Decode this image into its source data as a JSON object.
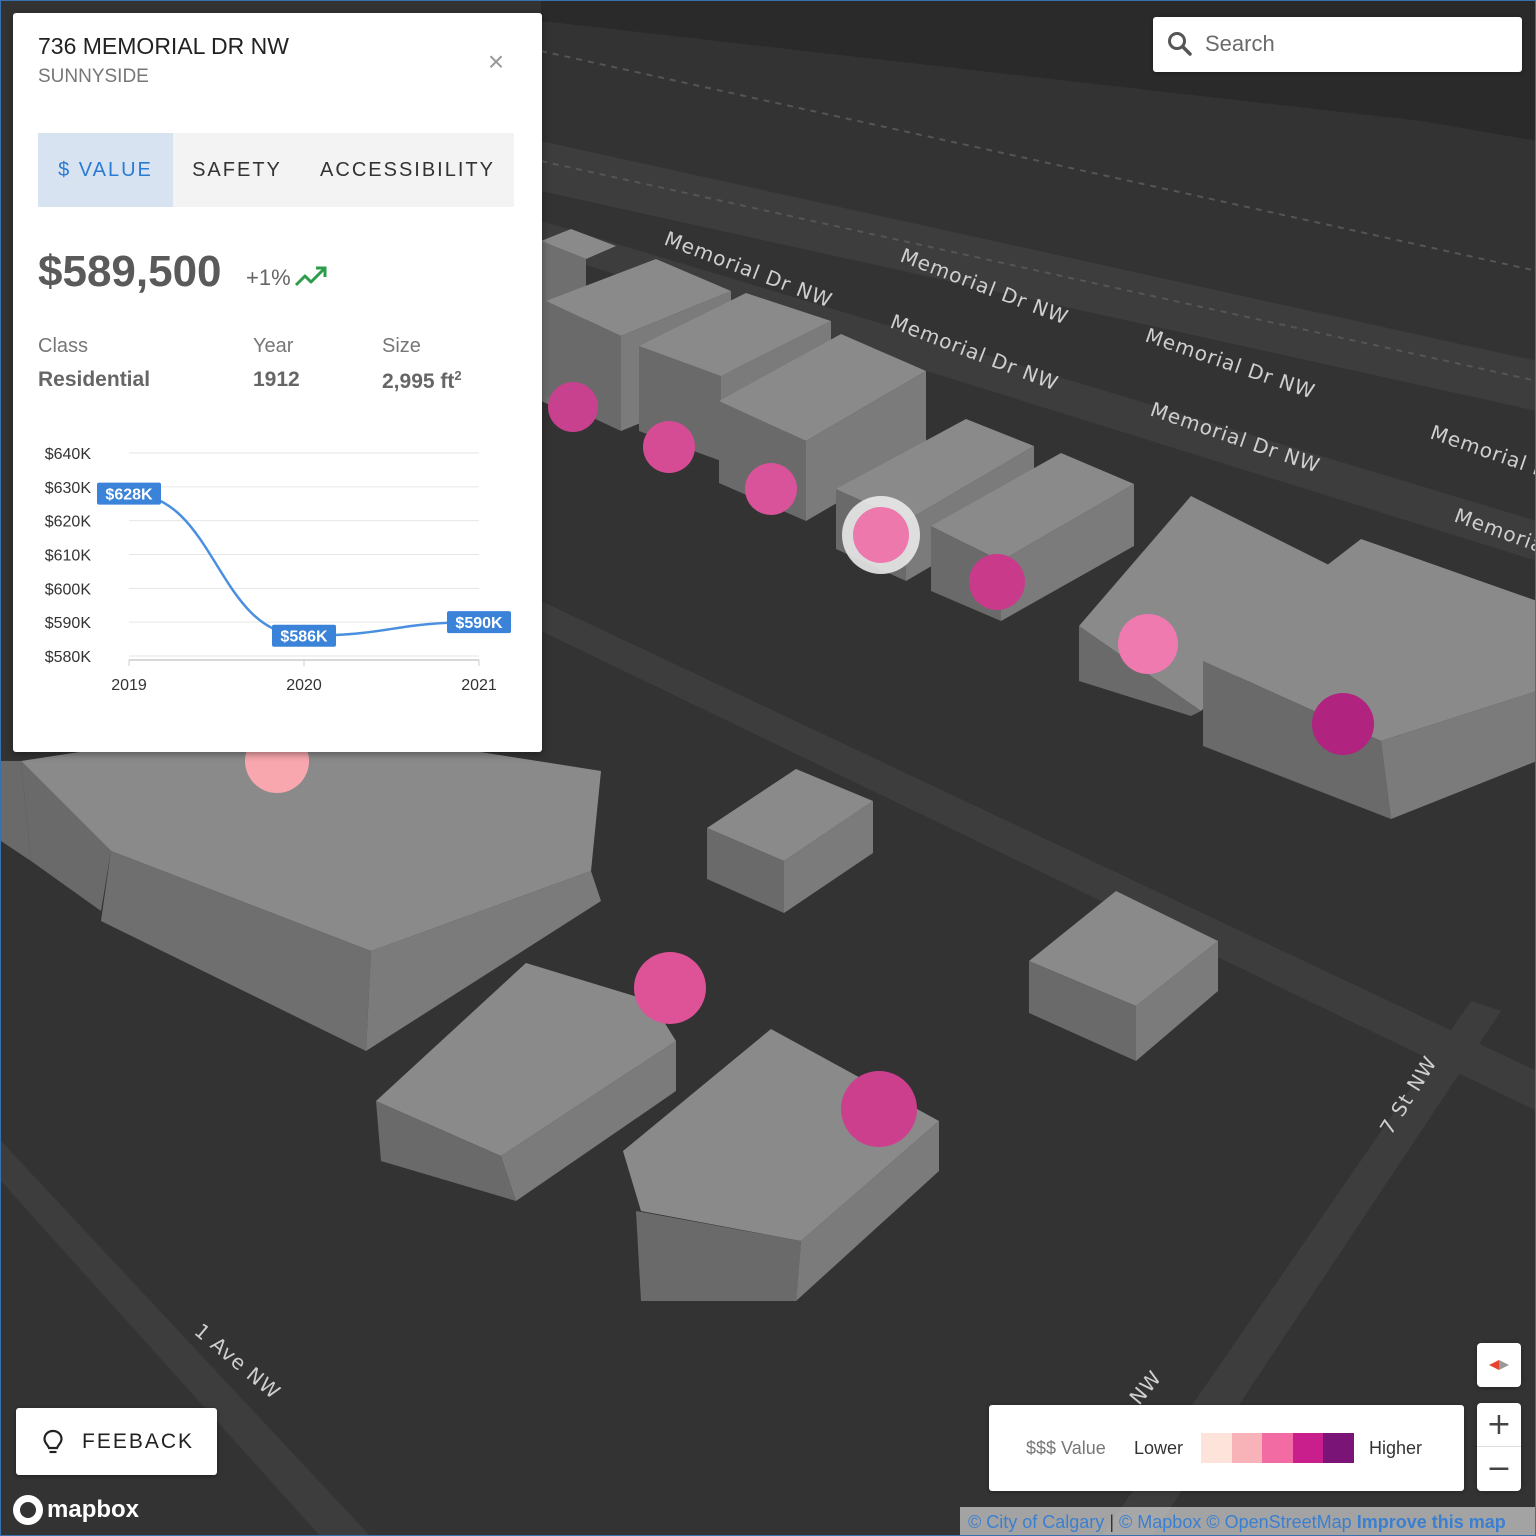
{
  "panel": {
    "address": "736 MEMORIAL DR NW",
    "neighbourhood": "SUNNYSIDE",
    "close_glyph": "×",
    "tabs": [
      {
        "label": "$ VALUE",
        "active": true
      },
      {
        "label": "SAFETY",
        "active": false
      },
      {
        "label": "ACCESSIBILITY",
        "active": false
      }
    ],
    "price": "$589,500",
    "change": "+1%",
    "trend_icon": "trending-up-icon",
    "trend_color": "#2e9d4a",
    "stats": [
      {
        "label": "Class",
        "value": "Residential"
      },
      {
        "label": "Year",
        "value": "1912"
      },
      {
        "label": "Size",
        "value": "2,995 ft",
        "sup": "2"
      }
    ]
  },
  "chart_data": {
    "type": "line",
    "x": [
      "2019",
      "2020",
      "2021"
    ],
    "series": [
      {
        "values": [
          628000,
          586000,
          590000
        ],
        "labels": [
          "$628K",
          "$586K",
          "$590K"
        ],
        "color": "#4a8fe0"
      }
    ],
    "ytick_labels": [
      "$580K",
      "$590K",
      "$600K",
      "$610K",
      "$620K",
      "$630K",
      "$640K"
    ],
    "ytick_values": [
      580000,
      590000,
      600000,
      610000,
      620000,
      630000,
      640000
    ],
    "ylim": [
      580000,
      640000
    ],
    "grid": true
  },
  "search": {
    "placeholder": "Search",
    "icon": "search-icon"
  },
  "feedback": {
    "label": "FEEBACK",
    "icon": "lightbulb-icon"
  },
  "legend": {
    "title": "$$$ Value",
    "low": "Lower",
    "high": "Higher",
    "colors": [
      "#fde3da",
      "#f8b3b9",
      "#f26ba2",
      "#c81f8c",
      "#7a1477"
    ]
  },
  "map": {
    "street_labels": [
      "Memorial Dr NW",
      "Memorial Dr NW",
      "Memorial Dr NW",
      "Memorial Dr NW",
      "Memorial Dr NW",
      "Memorial Dr NW",
      "Memorial D",
      "Memoria",
      "7 St NW",
      "1 Ave NW",
      "NW",
      "NW"
    ],
    "markers": [
      {
        "color": "#c8418f"
      },
      {
        "color": "#d64c94"
      },
      {
        "color": "#d9539a"
      },
      {
        "color": "#ec78ac",
        "selected": true
      },
      {
        "color": "#c93a8a"
      },
      {
        "color": "#ef7ab0"
      },
      {
        "color": "#b0237f"
      },
      {
        "color": "#f7a7ad"
      },
      {
        "color": "#de5298"
      },
      {
        "color": "#cc3f8c"
      }
    ]
  },
  "controls": {
    "zoom_in": "+",
    "zoom_out": "−",
    "compass_icon": "compass-icon"
  },
  "brand": {
    "logo_text": "mapbox"
  },
  "attribution": {
    "city": "© City of Calgary",
    "separator": "|",
    "mapbox": "© Mapbox",
    "osm": "© OpenStreetMap",
    "improve": "Improve this map"
  }
}
